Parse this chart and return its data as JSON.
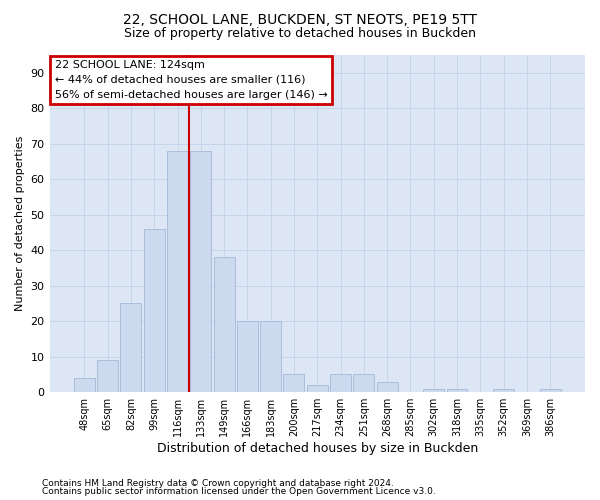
{
  "title1": "22, SCHOOL LANE, BUCKDEN, ST NEOTS, PE19 5TT",
  "title2": "Size of property relative to detached houses in Buckden",
  "xlabel": "Distribution of detached houses by size in Buckden",
  "ylabel": "Number of detached properties",
  "footer1": "Contains HM Land Registry data © Crown copyright and database right 2024.",
  "footer2": "Contains public sector information licensed under the Open Government Licence v3.0.",
  "bar_labels": [
    "48sqm",
    "65sqm",
    "82sqm",
    "99sqm",
    "116sqm",
    "133sqm",
    "149sqm",
    "166sqm",
    "183sqm",
    "200sqm",
    "217sqm",
    "234sqm",
    "251sqm",
    "268sqm",
    "285sqm",
    "302sqm",
    "318sqm",
    "335sqm",
    "352sqm",
    "369sqm",
    "386sqm"
  ],
  "bar_values": [
    4,
    9,
    25,
    46,
    68,
    68,
    38,
    20,
    20,
    5,
    2,
    5,
    5,
    3,
    0,
    1,
    1,
    0,
    1,
    0,
    1
  ],
  "bar_color": "#ccd9ee",
  "bar_edge_color": "#9ab0d0",
  "grid_color": "#c8d4e8",
  "background_color": "#dce6f5",
  "annotation_box_text": "22 SCHOOL LANE: 124sqm\n← 44% of detached houses are smaller (116)\n56% of semi-detached houses are larger (146) →",
  "annotation_box_color": "#ffffff",
  "annotation_box_edge_color": "#cc0000",
  "vline_x": 4.5,
  "vline_color": "#cc0000",
  "ylim": [
    0,
    95
  ],
  "yticks": [
    0,
    10,
    20,
    30,
    40,
    50,
    60,
    70,
    80,
    90
  ],
  "annotation_fontsize": 8,
  "title_fontsize1": 10,
  "title_fontsize2": 9,
  "footer_fontsize": 6.5
}
